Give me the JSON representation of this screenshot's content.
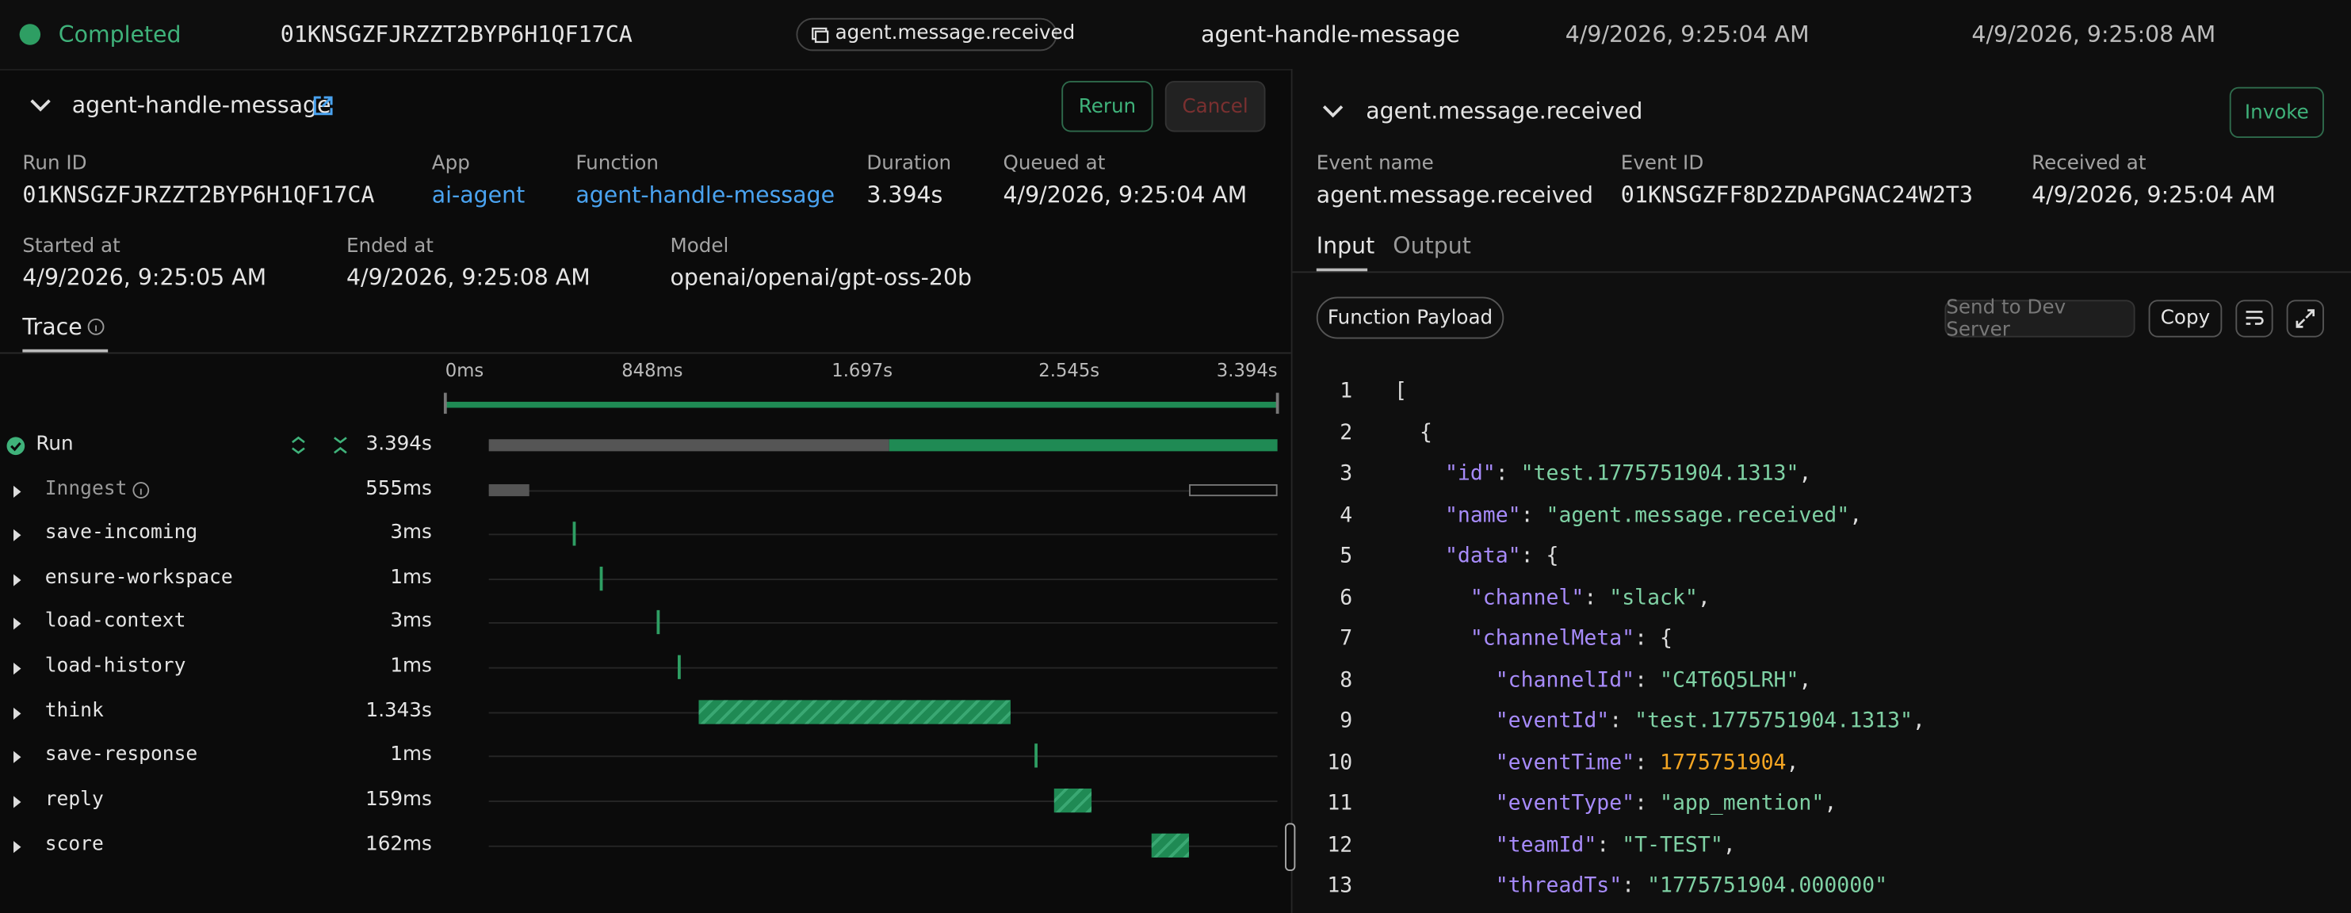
{
  "header": {
    "status": "Completed",
    "run_id": "01KNSGZFJRZZT2BYP6H1QF17CA",
    "event": "agent.message.received",
    "function": "agent-handle-message",
    "queued": "4/9/2026, 9:25:04 AM",
    "ended": "4/9/2026, 9:25:08 AM"
  },
  "run": {
    "title": "agent-handle-message",
    "rerun": "Rerun",
    "cancel": "Cancel",
    "fields": [
      {
        "label": "Run ID",
        "value": "01KNSGZFJRZZT2BYP6H1QF17CA"
      },
      {
        "label": "App",
        "value": "ai-agent"
      },
      {
        "label": "Function",
        "value": "agent-handle-message"
      },
      {
        "label": "Duration",
        "value": "3.394s"
      },
      {
        "label": "Queued at",
        "value": "4/9/2026, 9:25:04 AM"
      },
      {
        "label": "Started at",
        "value": "4/9/2026, 9:25:05 AM"
      },
      {
        "label": "Ended at",
        "value": "4/9/2026, 9:25:08 AM"
      },
      {
        "label": "Model",
        "value": "openai/openai/gpt-oss-20b"
      }
    ]
  },
  "trace": {
    "tab": "Trace",
    "ticks": [
      "0ms",
      "848ms",
      "1.697s",
      "2.545s",
      "3.394s"
    ],
    "spans": [
      {
        "name": "Run",
        "duration": "3.394s"
      },
      {
        "name": "Inngest",
        "duration": "555ms"
      },
      {
        "name": "save-incoming",
        "duration": "3ms"
      },
      {
        "name": "ensure-workspace",
        "duration": "1ms"
      },
      {
        "name": "load-context",
        "duration": "3ms"
      },
      {
        "name": "load-history",
        "duration": "1ms"
      },
      {
        "name": "think",
        "duration": "1.343s"
      },
      {
        "name": "save-response",
        "duration": "1ms"
      },
      {
        "name": "reply",
        "duration": "159ms"
      },
      {
        "name": "score",
        "duration": "162ms"
      }
    ]
  },
  "event_panel": {
    "title": "agent.message.received",
    "invoke": "Invoke",
    "fields": [
      {
        "label": "Event name",
        "value": "agent.message.received"
      },
      {
        "label": "Event ID",
        "value": "01KNSGZFF8D2ZDAPGNAC24W2T3"
      },
      {
        "label": "Received at",
        "value": "4/9/2026, 9:25:04 AM"
      }
    ],
    "tabs": [
      "Input",
      "Output"
    ],
    "payload_button": "Function Payload",
    "buttons": [
      "Send to Dev Server",
      "Copy"
    ],
    "code": [
      {
        "n": 1,
        "text": "["
      },
      {
        "n": 2,
        "text": "  {"
      },
      {
        "n": 3,
        "text": "    \"id\": \"test.1775751904.1313\","
      },
      {
        "n": 4,
        "text": "    \"name\": \"agent.message.received\","
      },
      {
        "n": 5,
        "text": "    \"data\": {"
      },
      {
        "n": 6,
        "text": "      \"channel\": \"slack\","
      },
      {
        "n": 7,
        "text": "      \"channelMeta\": {"
      },
      {
        "n": 8,
        "text": "        \"channelId\": \"C4T6Q5LRH\","
      },
      {
        "n": 9,
        "text": "        \"eventId\": \"test.1775751904.1313\","
      },
      {
        "n": 10,
        "text": "        \"eventTime\": 1775751904,"
      },
      {
        "n": 11,
        "text": "        \"eventType\": \"app_mention\","
      },
      {
        "n": 12,
        "text": "        \"teamId\": \"T-TEST\","
      },
      {
        "n": 13,
        "text": "        \"threadTs\": \"1775751904.000000\""
      }
    ]
  }
}
